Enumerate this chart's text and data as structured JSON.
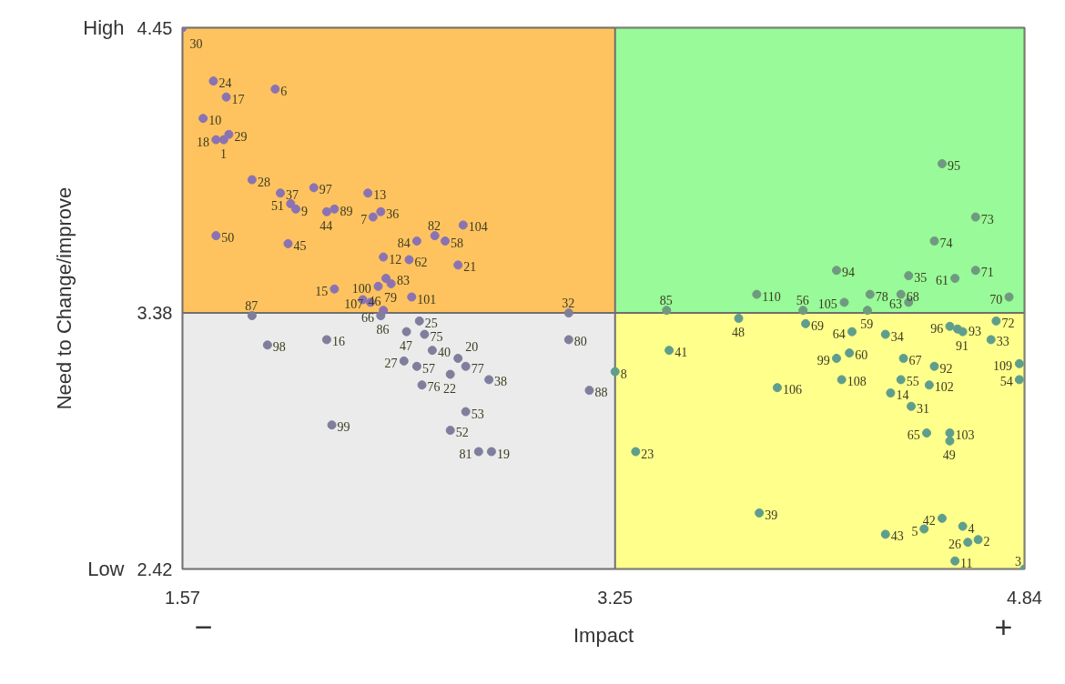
{
  "chart_data": {
    "type": "scatter",
    "xlabel": "Impact",
    "ylabel": "Need to Change/improve",
    "xlim": [
      1.57,
      4.84
    ],
    "ylim": [
      2.42,
      4.45
    ],
    "xticks": [
      1.57,
      3.25,
      4.84
    ],
    "yticks": [
      4.45,
      3.38,
      2.42
    ],
    "marker": "circle",
    "bands": [
      {
        "axis": "y",
        "from": 3.38,
        "to": 4.45,
        "color": "#fec35f"
      },
      {
        "axis": "y",
        "from": 2.42,
        "to": 3.38,
        "color": "#ebebeb"
      },
      {
        "axis": "x",
        "from": 3.25,
        "to": 4.84,
        "color": "#98fa98"
      },
      {
        "axis": "x",
        "from": 3.25,
        "to": 4.84,
        "color": "#ffff8c"
      }
    ],
    "series": [
      {
        "color": "#8a73b2",
        "x": [
          1.57,
          1.69,
          1.74,
          1.93,
          1.65,
          1.75,
          1.7,
          1.73,
          1.84,
          1.95,
          2.08,
          2.29,
          1.99,
          2.01,
          2.16,
          2.13,
          2.34,
          2.31,
          1.7,
          1.98,
          2.66,
          2.55,
          2.48,
          2.59,
          2.64,
          2.45,
          2.35,
          2.36,
          2.38,
          2.46,
          2.33,
          2.16,
          2.3,
          2.27,
          2.35
        ],
        "values": [
          4.45,
          4.25,
          4.19,
          4.22,
          4.11,
          4.05,
          4.03,
          4.03,
          3.88,
          3.83,
          3.85,
          3.83,
          3.79,
          3.77,
          3.77,
          3.76,
          3.76,
          3.74,
          3.67,
          3.64,
          3.71,
          3.67,
          3.65,
          3.65,
          3.56,
          3.58,
          3.59,
          3.51,
          3.49,
          3.44,
          3.48,
          3.47,
          3.42,
          3.43,
          3.39
        ]
      },
      {
        "color": "#7f7e9c",
        "x": [
          2.49,
          1.84,
          3.07,
          1.9,
          2.13,
          2.34,
          2.44,
          2.51,
          2.54,
          2.64,
          2.67,
          2.76,
          2.43,
          2.48,
          2.5,
          2.61,
          2.67,
          2.15,
          2.61,
          2.72,
          2.77,
          3.07,
          3.15
        ],
        "values": [
          3.35,
          3.37,
          3.38,
          3.26,
          3.28,
          3.37,
          3.31,
          3.3,
          3.24,
          3.21,
          3.18,
          3.13,
          3.2,
          3.18,
          3.11,
          3.15,
          3.01,
          2.96,
          2.94,
          2.86,
          2.86,
          3.28,
          3.09
        ]
      },
      {
        "color": "#6f9a80",
        "x": [
          4.52,
          4.65,
          4.49,
          4.11,
          4.39,
          4.57,
          4.65,
          3.8,
          4.24,
          4.36,
          4.39,
          4.23,
          4.14,
          3.98,
          4.78,
          3.45
        ],
        "values": [
          3.94,
          3.74,
          3.65,
          3.54,
          3.52,
          3.51,
          3.54,
          3.45,
          3.45,
          3.45,
          3.42,
          3.39,
          3.42,
          3.39,
          3.44,
          3.39
        ]
      },
      {
        "color": "#5f9e8c",
        "x": [
          3.25,
          3.73,
          3.99,
          4.55,
          4.58,
          4.6,
          4.73,
          4.17,
          4.3,
          3.46,
          4.71,
          4.82,
          4.82,
          4.11,
          4.16,
          4.37,
          4.49,
          4.13,
          4.36,
          4.47,
          4.32,
          3.88,
          4.4,
          4.46,
          4.55,
          4.55,
          3.33,
          3.81,
          4.52,
          4.6,
          4.45,
          4.3,
          4.66,
          4.62,
          4.57,
          4.84
        ],
        "values": [
          3.16,
          3.36,
          3.34,
          3.33,
          3.32,
          3.31,
          3.35,
          3.31,
          3.3,
          3.24,
          3.28,
          3.19,
          3.13,
          3.21,
          3.23,
          3.21,
          3.18,
          3.13,
          3.13,
          3.11,
          3.08,
          3.1,
          3.03,
          2.93,
          2.93,
          2.9,
          2.86,
          2.63,
          2.61,
          2.58,
          2.57,
          2.55,
          2.53,
          2.52,
          2.45,
          2.42
        ]
      }
    ],
    "annotations": [
      "High",
      "Low",
      "−",
      "+",
      {
        "text": "30",
        "x": 1.57,
        "y": 4.45
      },
      {
        "text": "24",
        "x": 1.69,
        "y": 4.25
      },
      {
        "text": "17",
        "x": 1.74,
        "y": 4.19
      },
      {
        "text": "6",
        "x": 1.93,
        "y": 4.22
      },
      {
        "text": "10",
        "x": 1.65,
        "y": 4.11
      },
      {
        "text": "29",
        "x": 1.75,
        "y": 4.05
      },
      {
        "text": "18",
        "x": 1.7,
        "y": 4.03
      },
      {
        "text": "1",
        "x": 1.73,
        "y": 4.03
      },
      {
        "text": "28",
        "x": 1.84,
        "y": 3.88
      },
      {
        "text": "37",
        "x": 1.95,
        "y": 3.83
      },
      {
        "text": "97",
        "x": 2.08,
        "y": 3.85
      },
      {
        "text": "13",
        "x": 2.29,
        "y": 3.83
      },
      {
        "text": "51",
        "x": 1.99,
        "y": 3.79
      },
      {
        "text": "9",
        "x": 2.01,
        "y": 3.77
      },
      {
        "text": "89",
        "x": 2.16,
        "y": 3.77
      },
      {
        "text": "44",
        "x": 2.13,
        "y": 3.76
      },
      {
        "text": "36",
        "x": 2.34,
        "y": 3.76
      },
      {
        "text": "7",
        "x": 2.31,
        "y": 3.74
      },
      {
        "text": "50",
        "x": 1.7,
        "y": 3.67
      },
      {
        "text": "45",
        "x": 1.98,
        "y": 3.64
      },
      {
        "text": "104",
        "x": 2.66,
        "y": 3.71
      },
      {
        "text": "82",
        "x": 2.55,
        "y": 3.67
      },
      {
        "text": "84",
        "x": 2.48,
        "y": 3.65
      },
      {
        "text": "58",
        "x": 2.59,
        "y": 3.65
      },
      {
        "text": "21",
        "x": 2.64,
        "y": 3.56
      },
      {
        "text": "62",
        "x": 2.45,
        "y": 3.58
      },
      {
        "text": "12",
        "x": 2.35,
        "y": 3.59
      },
      {
        "text": "83",
        "x": 2.36,
        "y": 3.51
      },
      {
        "text": "79",
        "x": 2.38,
        "y": 3.49
      },
      {
        "text": "101",
        "x": 2.46,
        "y": 3.44
      },
      {
        "text": "100",
        "x": 2.33,
        "y": 3.48
      },
      {
        "text": "15",
        "x": 2.16,
        "y": 3.47
      },
      {
        "text": "107",
        "x": 2.3,
        "y": 3.42
      },
      {
        "text": "46",
        "x": 2.27,
        "y": 3.43
      },
      {
        "text": "86",
        "x": 2.35,
        "y": 3.39
      },
      {
        "text": "25",
        "x": 2.49,
        "y": 3.35
      },
      {
        "text": "87",
        "x": 1.84,
        "y": 3.37
      },
      {
        "text": "32",
        "x": 3.07,
        "y": 3.38
      },
      {
        "text": "98",
        "x": 1.9,
        "y": 3.26
      },
      {
        "text": "16",
        "x": 2.13,
        "y": 3.28
      },
      {
        "text": "66",
        "x": 2.34,
        "y": 3.37
      },
      {
        "text": "47",
        "x": 2.44,
        "y": 3.31
      },
      {
        "text": "75",
        "x": 2.51,
        "y": 3.3
      },
      {
        "text": "40",
        "x": 2.54,
        "y": 3.24
      },
      {
        "text": "20",
        "x": 2.64,
        "y": 3.21
      },
      {
        "text": "77",
        "x": 2.67,
        "y": 3.18
      },
      {
        "text": "38",
        "x": 2.76,
        "y": 3.13
      },
      {
        "text": "27",
        "x": 2.43,
        "y": 3.2
      },
      {
        "text": "57",
        "x": 2.48,
        "y": 3.18
      },
      {
        "text": "76",
        "x": 2.5,
        "y": 3.11
      },
      {
        "text": "22",
        "x": 2.61,
        "y": 3.15
      },
      {
        "text": "53",
        "x": 2.67,
        "y": 3.01
      },
      {
        "text": "99",
        "x": 2.15,
        "y": 2.96
      },
      {
        "text": "52",
        "x": 2.61,
        "y": 2.94
      },
      {
        "text": "81",
        "x": 2.72,
        "y": 2.86
      },
      {
        "text": "19",
        "x": 2.77,
        "y": 2.86
      },
      {
        "text": "80",
        "x": 3.07,
        "y": 3.28
      },
      {
        "text": "88",
        "x": 3.15,
        "y": 3.09
      },
      {
        "text": "95",
        "x": 4.52,
        "y": 3.94
      },
      {
        "text": "73",
        "x": 4.65,
        "y": 3.74
      },
      {
        "text": "74",
        "x": 4.49,
        "y": 3.65
      },
      {
        "text": "94",
        "x": 4.11,
        "y": 3.54
      },
      {
        "text": "35",
        "x": 4.39,
        "y": 3.52
      },
      {
        "text": "61",
        "x": 4.57,
        "y": 3.51
      },
      {
        "text": "71",
        "x": 4.65,
        "y": 3.54
      },
      {
        "text": "110",
        "x": 3.8,
        "y": 3.45
      },
      {
        "text": "78",
        "x": 4.24,
        "y": 3.45
      },
      {
        "text": "68",
        "x": 4.36,
        "y": 3.45
      },
      {
        "text": "63",
        "x": 4.39,
        "y": 3.42
      },
      {
        "text": "59",
        "x": 4.23,
        "y": 3.39
      },
      {
        "text": "105",
        "x": 4.14,
        "y": 3.42
      },
      {
        "text": "56",
        "x": 3.98,
        "y": 3.39
      },
      {
        "text": "70",
        "x": 4.78,
        "y": 3.44
      },
      {
        "text": "85",
        "x": 3.45,
        "y": 3.39
      },
      {
        "text": "8",
        "x": 3.25,
        "y": 3.16
      },
      {
        "text": "48",
        "x": 3.73,
        "y": 3.36
      },
      {
        "text": "69",
        "x": 3.99,
        "y": 3.34
      },
      {
        "text": "96",
        "x": 4.55,
        "y": 3.33
      },
      {
        "text": "93",
        "x": 4.58,
        "y": 3.32
      },
      {
        "text": "91",
        "x": 4.6,
        "y": 3.31
      },
      {
        "text": "72",
        "x": 4.73,
        "y": 3.35
      },
      {
        "text": "64",
        "x": 4.17,
        "y": 3.31
      },
      {
        "text": "34",
        "x": 4.3,
        "y": 3.3
      },
      {
        "text": "41",
        "x": 3.46,
        "y": 3.24
      },
      {
        "text": "33",
        "x": 4.71,
        "y": 3.28
      },
      {
        "text": "109",
        "x": 4.82,
        "y": 3.19
      },
      {
        "text": "54",
        "x": 4.82,
        "y": 3.13
      },
      {
        "text": "99",
        "x": 4.11,
        "y": 3.21
      },
      {
        "text": "60",
        "x": 4.16,
        "y": 3.23
      },
      {
        "text": "67",
        "x": 4.37,
        "y": 3.21
      },
      {
        "text": "92",
        "x": 4.49,
        "y": 3.18
      },
      {
        "text": "108",
        "x": 4.13,
        "y": 3.13
      },
      {
        "text": "55",
        "x": 4.36,
        "y": 3.13
      },
      {
        "text": "102",
        "x": 4.47,
        "y": 3.11
      },
      {
        "text": "14",
        "x": 4.32,
        "y": 3.08
      },
      {
        "text": "106",
        "x": 3.88,
        "y": 3.1
      },
      {
        "text": "31",
        "x": 4.4,
        "y": 3.03
      },
      {
        "text": "65",
        "x": 4.46,
        "y": 2.93
      },
      {
        "text": "103",
        "x": 4.55,
        "y": 2.93
      },
      {
        "text": "49",
        "x": 4.55,
        "y": 2.9
      },
      {
        "text": "23",
        "x": 3.33,
        "y": 2.86
      },
      {
        "text": "39",
        "x": 3.81,
        "y": 2.63
      },
      {
        "text": "42",
        "x": 4.52,
        "y": 2.61
      },
      {
        "text": "4",
        "x": 4.6,
        "y": 2.58
      },
      {
        "text": "5",
        "x": 4.45,
        "y": 2.57
      },
      {
        "text": "43",
        "x": 4.3,
        "y": 2.55
      },
      {
        "text": "2",
        "x": 4.66,
        "y": 2.53
      },
      {
        "text": "26",
        "x": 4.62,
        "y": 2.52
      },
      {
        "text": "11",
        "x": 4.57,
        "y": 2.45
      },
      {
        "text": "3",
        "x": 4.84,
        "y": 2.42
      }
    ]
  }
}
